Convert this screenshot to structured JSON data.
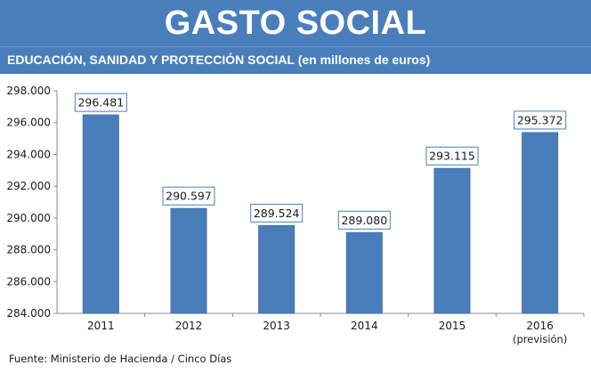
{
  "header": {
    "title": "GASTO SOCIAL",
    "subtitle": "EDUCACIÓN, SANIDAD Y PROTECCIÓN SOCIAL (en millones de euros)"
  },
  "footer": {
    "source": "Fuente: Ministerio de Hacienda / Cinco Días"
  },
  "colors": {
    "header_bg": "#4a7ebb",
    "bar_fill": "#4a7ebb",
    "bar_stroke": "#3f6fa8",
    "label_border": "#4a7ebb"
  },
  "chart_data": {
    "type": "bar",
    "title": "GASTO SOCIAL",
    "subtitle": "EDUCACIÓN, SANIDAD Y PROTECCIÓN SOCIAL (en millones de euros)",
    "categories": [
      "2011",
      "2012",
      "2013",
      "2014",
      "2015",
      "2016"
    ],
    "category_sublabels": [
      "",
      "",
      "",
      "",
      "",
      "(previsión)"
    ],
    "values": [
      296481,
      290597,
      289524,
      289080,
      293115,
      295372
    ],
    "data_labels": [
      "296.481",
      "290.597",
      "289.524",
      "289.080",
      "293.115",
      "295.372"
    ],
    "ylim": [
      284000,
      298000
    ],
    "yticks": [
      284000,
      286000,
      288000,
      290000,
      292000,
      294000,
      296000,
      298000
    ],
    "ytick_labels": [
      "284.000",
      "286.000",
      "288.000",
      "290.000",
      "292.000",
      "294.000",
      "296.000",
      "298.000"
    ],
    "xlabel": "",
    "ylabel": "",
    "grid": false,
    "legend": "none"
  }
}
